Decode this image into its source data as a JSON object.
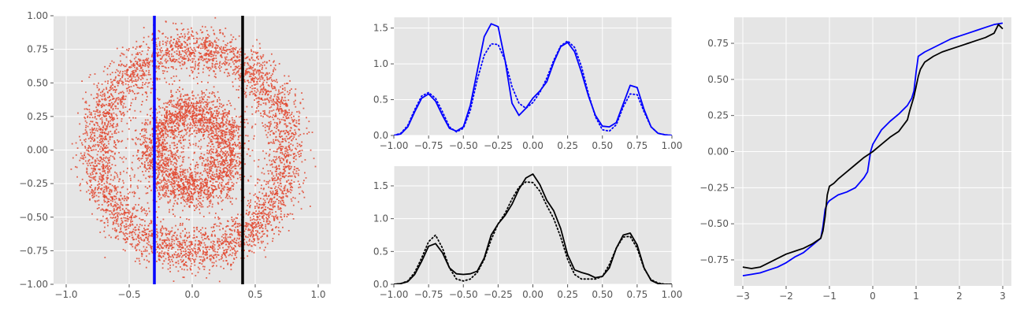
{
  "colors": {
    "panel_bg": "#e5e5e5",
    "grid": "#ffffff",
    "tick_text": "#555555",
    "scatter": "#e24a33",
    "blue": "#0000ff",
    "black": "#000000"
  },
  "chart_data": [
    {
      "id": "scatter-rings",
      "type": "scatter",
      "title": "",
      "xlabel": "",
      "ylabel": "",
      "xlim": [
        -1.1,
        1.1
      ],
      "ylim": [
        -1.0,
        1.0
      ],
      "grid": true,
      "legend": "none",
      "xticks": [
        -1.0,
        -0.5,
        0.0,
        0.5,
        1.0
      ],
      "xtick_labels": [
        "−1.0",
        "−0.5",
        "0.0",
        "0.5",
        "1.0"
      ],
      "yticks": [
        -1.0,
        -0.75,
        -0.5,
        -0.25,
        0.0,
        0.25,
        0.5,
        0.75,
        1.0
      ],
      "ytick_labels": [
        "−1.00",
        "−0.75",
        "−0.50",
        "−0.25",
        "0.00",
        "0.25",
        "0.50",
        "0.75",
        "1.00"
      ],
      "rings": [
        {
          "radius": 0.3,
          "spread": 0.085,
          "points": 2600
        },
        {
          "radius": 0.75,
          "spread": 0.085,
          "points": 4200
        }
      ],
      "vlines": [
        {
          "x": -0.3,
          "color": "#0000ff"
        },
        {
          "x": 0.4,
          "color": "#000000"
        }
      ]
    },
    {
      "id": "density-top",
      "type": "line",
      "title": "",
      "xlabel": "",
      "ylabel": "",
      "xlim": [
        -1.0,
        1.0
      ],
      "ylim": [
        0.0,
        1.65
      ],
      "grid": true,
      "legend": "none",
      "xticks": [
        -1.0,
        -0.75,
        -0.5,
        -0.25,
        0.0,
        0.25,
        0.5,
        0.75,
        1.0
      ],
      "xtick_labels": [
        "−1.00",
        "−0.75",
        "−0.50",
        "−0.25",
        "0.00",
        "0.25",
        "0.50",
        "0.75",
        "1.00"
      ],
      "yticks": [
        0.0,
        0.5,
        1.0,
        1.5
      ],
      "ytick_labels": [
        "0.0",
        "0.5",
        "1.0",
        "1.5"
      ],
      "series": [
        {
          "style": "solid",
          "color": "#0000ff",
          "x": [
            -1.0,
            -0.95,
            -0.9,
            -0.85,
            -0.8,
            -0.75,
            -0.7,
            -0.65,
            -0.6,
            -0.55,
            -0.5,
            -0.45,
            -0.4,
            -0.35,
            -0.3,
            -0.25,
            -0.2,
            -0.15,
            -0.1,
            -0.05,
            0.0,
            0.05,
            0.1,
            0.15,
            0.2,
            0.25,
            0.3,
            0.35,
            0.4,
            0.45,
            0.5,
            0.55,
            0.6,
            0.65,
            0.7,
            0.75,
            0.8,
            0.85,
            0.9,
            0.95,
            1.0
          ],
          "y": [
            0.0,
            0.02,
            0.12,
            0.33,
            0.52,
            0.58,
            0.48,
            0.28,
            0.1,
            0.06,
            0.12,
            0.42,
            0.9,
            1.38,
            1.56,
            1.52,
            1.05,
            0.45,
            0.28,
            0.38,
            0.52,
            0.62,
            0.75,
            1.02,
            1.24,
            1.3,
            1.17,
            0.88,
            0.55,
            0.28,
            0.13,
            0.12,
            0.18,
            0.44,
            0.7,
            0.67,
            0.36,
            0.12,
            0.03,
            0.01,
            0.0
          ]
        },
        {
          "style": "dotted",
          "color": "#0000ff",
          "x": [
            -1.0,
            -0.95,
            -0.9,
            -0.85,
            -0.8,
            -0.75,
            -0.7,
            -0.65,
            -0.6,
            -0.55,
            -0.5,
            -0.45,
            -0.4,
            -0.35,
            -0.3,
            -0.25,
            -0.2,
            -0.15,
            -0.1,
            -0.05,
            0.0,
            0.05,
            0.1,
            0.15,
            0.2,
            0.25,
            0.3,
            0.35,
            0.4,
            0.45,
            0.5,
            0.55,
            0.6,
            0.65,
            0.7,
            0.75,
            0.8,
            0.85,
            0.9,
            0.95,
            1.0
          ],
          "y": [
            0.0,
            0.03,
            0.14,
            0.36,
            0.55,
            0.6,
            0.52,
            0.33,
            0.12,
            0.05,
            0.1,
            0.35,
            0.78,
            1.12,
            1.28,
            1.27,
            1.05,
            0.68,
            0.45,
            0.38,
            0.46,
            0.6,
            0.8,
            1.05,
            1.25,
            1.32,
            1.23,
            0.96,
            0.58,
            0.26,
            0.08,
            0.06,
            0.15,
            0.4,
            0.58,
            0.57,
            0.33,
            0.12,
            0.03,
            0.01,
            0.0
          ]
        }
      ]
    },
    {
      "id": "density-bottom",
      "type": "line",
      "title": "",
      "xlabel": "",
      "ylabel": "",
      "xlim": [
        -1.0,
        1.0
      ],
      "ylim": [
        0.0,
        1.8
      ],
      "grid": true,
      "legend": "none",
      "xticks": [
        -1.0,
        -0.75,
        -0.5,
        -0.25,
        0.0,
        0.25,
        0.5,
        0.75,
        1.0
      ],
      "xtick_labels": [
        "−1.00",
        "−0.75",
        "−0.50",
        "−0.25",
        "0.00",
        "0.25",
        "0.50",
        "0.75",
        "1.00"
      ],
      "yticks": [
        0.0,
        0.5,
        1.0,
        1.5
      ],
      "ytick_labels": [
        "0.0",
        "0.5",
        "1.0",
        "1.5"
      ],
      "series": [
        {
          "style": "solid",
          "color": "#000000",
          "x": [
            -1.0,
            -0.95,
            -0.9,
            -0.85,
            -0.8,
            -0.75,
            -0.7,
            -0.65,
            -0.6,
            -0.55,
            -0.5,
            -0.45,
            -0.4,
            -0.35,
            -0.3,
            -0.25,
            -0.2,
            -0.15,
            -0.1,
            -0.05,
            0.0,
            0.05,
            0.1,
            0.15,
            0.2,
            0.25,
            0.3,
            0.35,
            0.4,
            0.45,
            0.5,
            0.55,
            0.6,
            0.65,
            0.7,
            0.75,
            0.8,
            0.85,
            0.9,
            0.95,
            1.0
          ],
          "y": [
            0.0,
            0.01,
            0.04,
            0.15,
            0.35,
            0.58,
            0.62,
            0.48,
            0.25,
            0.16,
            0.15,
            0.16,
            0.2,
            0.4,
            0.75,
            0.92,
            1.05,
            1.22,
            1.45,
            1.62,
            1.68,
            1.52,
            1.28,
            1.12,
            0.85,
            0.45,
            0.22,
            0.18,
            0.15,
            0.1,
            0.12,
            0.25,
            0.55,
            0.75,
            0.78,
            0.6,
            0.25,
            0.06,
            0.01,
            0.0,
            0.0
          ]
        },
        {
          "style": "dotted",
          "color": "#000000",
          "x": [
            -1.0,
            -0.95,
            -0.9,
            -0.85,
            -0.8,
            -0.75,
            -0.7,
            -0.65,
            -0.6,
            -0.55,
            -0.5,
            -0.45,
            -0.4,
            -0.35,
            -0.3,
            -0.25,
            -0.2,
            -0.15,
            -0.1,
            -0.05,
            0.0,
            0.05,
            0.1,
            0.15,
            0.2,
            0.25,
            0.3,
            0.35,
            0.4,
            0.45,
            0.5,
            0.55,
            0.6,
            0.65,
            0.7,
            0.75,
            0.8,
            0.85,
            0.9,
            0.95,
            1.0
          ],
          "y": [
            0.0,
            0.01,
            0.05,
            0.18,
            0.4,
            0.65,
            0.75,
            0.55,
            0.25,
            0.08,
            0.05,
            0.08,
            0.18,
            0.38,
            0.68,
            0.92,
            1.08,
            1.3,
            1.48,
            1.56,
            1.55,
            1.42,
            1.2,
            1.0,
            0.72,
            0.38,
            0.15,
            0.08,
            0.08,
            0.08,
            0.12,
            0.3,
            0.55,
            0.72,
            0.73,
            0.55,
            0.24,
            0.07,
            0.02,
            0.0,
            0.0
          ]
        }
      ]
    },
    {
      "id": "quantile-curves",
      "type": "line",
      "title": "",
      "xlabel": "",
      "ylabel": "",
      "xlim": [
        -3.2,
        3.2
      ],
      "ylim": [
        -0.93,
        0.93
      ],
      "grid": true,
      "legend": "none",
      "xticks": [
        -3,
        -2,
        -1,
        0,
        1,
        2,
        3
      ],
      "xtick_labels": [
        "−3",
        "−2",
        "−1",
        "0",
        "1",
        "2",
        "3"
      ],
      "yticks": [
        -0.75,
        -0.5,
        -0.25,
        0.0,
        0.25,
        0.5,
        0.75
      ],
      "ytick_labels": [
        "−0.75",
        "−0.50",
        "−0.25",
        "0.00",
        "0.25",
        "0.50",
        "0.75"
      ],
      "series": [
        {
          "style": "solid",
          "color": "#0000ff",
          "x": [
            -3.0,
            -2.8,
            -2.6,
            -2.4,
            -2.2,
            -2.0,
            -1.8,
            -1.6,
            -1.4,
            -1.2,
            -1.15,
            -1.1,
            -1.05,
            -1.0,
            -0.9,
            -0.8,
            -0.6,
            -0.4,
            -0.2,
            -0.12,
            -0.1,
            -0.05,
            0.0,
            0.2,
            0.4,
            0.6,
            0.8,
            0.9,
            0.95,
            1.0,
            1.05,
            1.1,
            1.2,
            1.4,
            1.6,
            1.8,
            2.0,
            2.2,
            2.4,
            2.6,
            2.8,
            3.0
          ],
          "y": [
            -0.86,
            -0.85,
            -0.84,
            -0.82,
            -0.8,
            -0.77,
            -0.73,
            -0.7,
            -0.65,
            -0.6,
            -0.52,
            -0.4,
            -0.36,
            -0.34,
            -0.32,
            -0.3,
            -0.28,
            -0.25,
            -0.18,
            -0.14,
            -0.1,
            0.0,
            0.05,
            0.15,
            0.21,
            0.26,
            0.32,
            0.37,
            0.42,
            0.55,
            0.66,
            0.67,
            0.69,
            0.72,
            0.75,
            0.78,
            0.8,
            0.82,
            0.84,
            0.86,
            0.88,
            0.89
          ]
        },
        {
          "style": "solid",
          "color": "#000000",
          "x": [
            -3.0,
            -2.8,
            -2.6,
            -2.4,
            -2.2,
            -2.0,
            -1.8,
            -1.6,
            -1.4,
            -1.2,
            -1.15,
            -1.1,
            -1.05,
            -1.0,
            -0.9,
            -0.8,
            -0.6,
            -0.4,
            -0.2,
            0.0,
            0.2,
            0.4,
            0.6,
            0.8,
            0.85,
            0.9,
            0.95,
            1.0,
            1.05,
            1.1,
            1.2,
            1.4,
            1.6,
            1.8,
            2.0,
            2.2,
            2.4,
            2.6,
            2.8,
            2.9,
            3.0
          ],
          "y": [
            -0.8,
            -0.81,
            -0.8,
            -0.77,
            -0.74,
            -0.71,
            -0.69,
            -0.67,
            -0.64,
            -0.6,
            -0.55,
            -0.45,
            -0.3,
            -0.24,
            -0.22,
            -0.19,
            -0.14,
            -0.09,
            -0.04,
            0.0,
            0.05,
            0.1,
            0.14,
            0.22,
            0.28,
            0.33,
            0.38,
            0.45,
            0.52,
            0.57,
            0.62,
            0.66,
            0.69,
            0.71,
            0.73,
            0.75,
            0.77,
            0.79,
            0.82,
            0.88,
            0.85
          ]
        }
      ]
    }
  ]
}
